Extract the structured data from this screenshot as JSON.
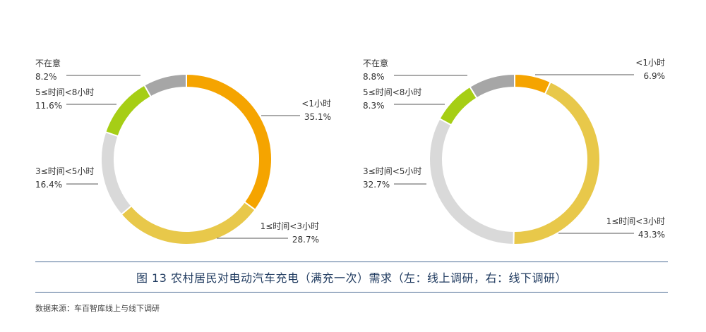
{
  "caption": "图 13 农村居民对电动汽车充电（满充一次）需求（左：线上调研，右：线下调研）",
  "source": "数据来源：车百智库线上与线下调研",
  "chart_data": [
    {
      "type": "pie",
      "donut": true,
      "categories": [
        "<1小时",
        "1≤时间<3小时",
        "3≤时间<5小时",
        "5≤时间<8小时",
        "不在意"
      ],
      "values": [
        35.1,
        28.7,
        16.4,
        11.6,
        8.2
      ],
      "value_labels": [
        "35.1%",
        "28.7%",
        "16.4%",
        "11.6%",
        "8.2%"
      ],
      "colors": [
        "#F5A400",
        "#E8C84A",
        "#D9D9D9",
        "#A6CE15",
        "#A6A6A6"
      ]
    },
    {
      "type": "pie",
      "donut": true,
      "categories": [
        "<1小时",
        "1≤时间<3小时",
        "3≤时间<5小时",
        "5≤时间<8小时",
        "不在意"
      ],
      "values": [
        6.9,
        43.3,
        32.7,
        8.3,
        8.8
      ],
      "value_labels": [
        "6.9%",
        "43.3%",
        "32.7%",
        "8.3%",
        "8.8%"
      ],
      "colors": [
        "#F5A400",
        "#E8C84A",
        "#D9D9D9",
        "#A6CE15",
        "#A6A6A6"
      ]
    }
  ]
}
